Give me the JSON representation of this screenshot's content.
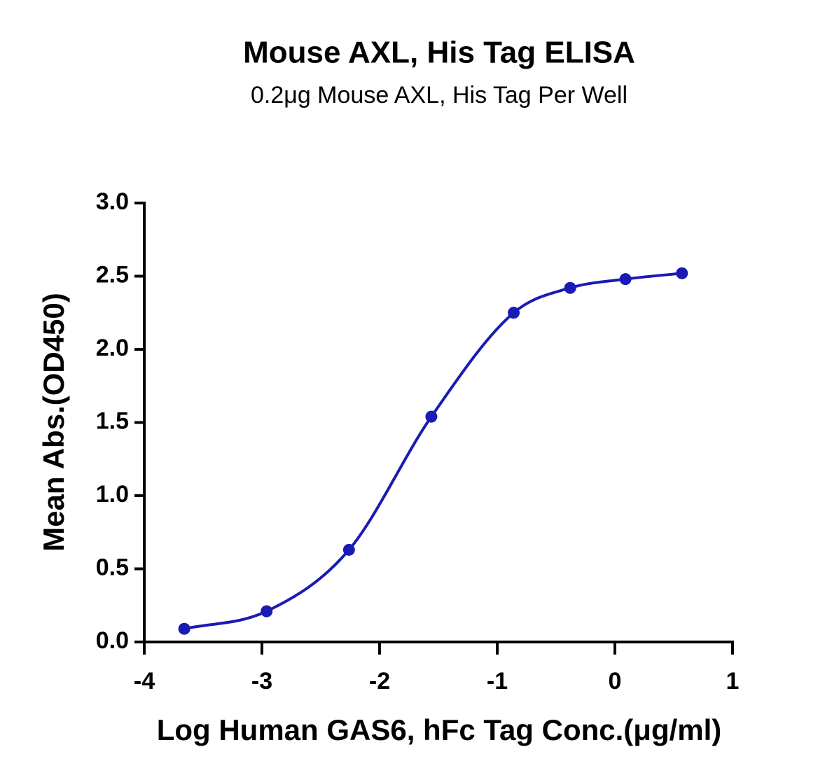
{
  "chart_data": {
    "type": "scatter",
    "title": "Mouse AXL, His Tag ELISA",
    "subtitle": "0.2μg Mouse AXL, His Tag Per Well",
    "x_label": "Log Human GAS6, hFc Tag Conc.(μg/ml)",
    "y_label": "Mean Abs.(OD450)",
    "x": [
      -3.66,
      -2.96,
      -2.26,
      -1.56,
      -0.86,
      -0.38,
      0.09,
      0.57
    ],
    "series": [
      {
        "color": "#1a1ab4",
        "values": [
          0.09,
          0.21,
          0.63,
          1.54,
          2.25,
          2.42,
          2.48,
          2.52
        ]
      }
    ],
    "xlim": [
      -4,
      1
    ],
    "xticks": [
      -4,
      -3,
      -2,
      -1,
      0,
      1
    ],
    "ylim": [
      0,
      3
    ],
    "yticks": [
      {
        "value": 0,
        "label": "0.0"
      },
      0.5,
      {
        "value": 1,
        "label": "1.0"
      },
      1.5,
      {
        "value": 2,
        "label": "2.0"
      },
      2.5,
      {
        "value": 3,
        "label": "3.0"
      }
    ],
    "grid": false
  }
}
